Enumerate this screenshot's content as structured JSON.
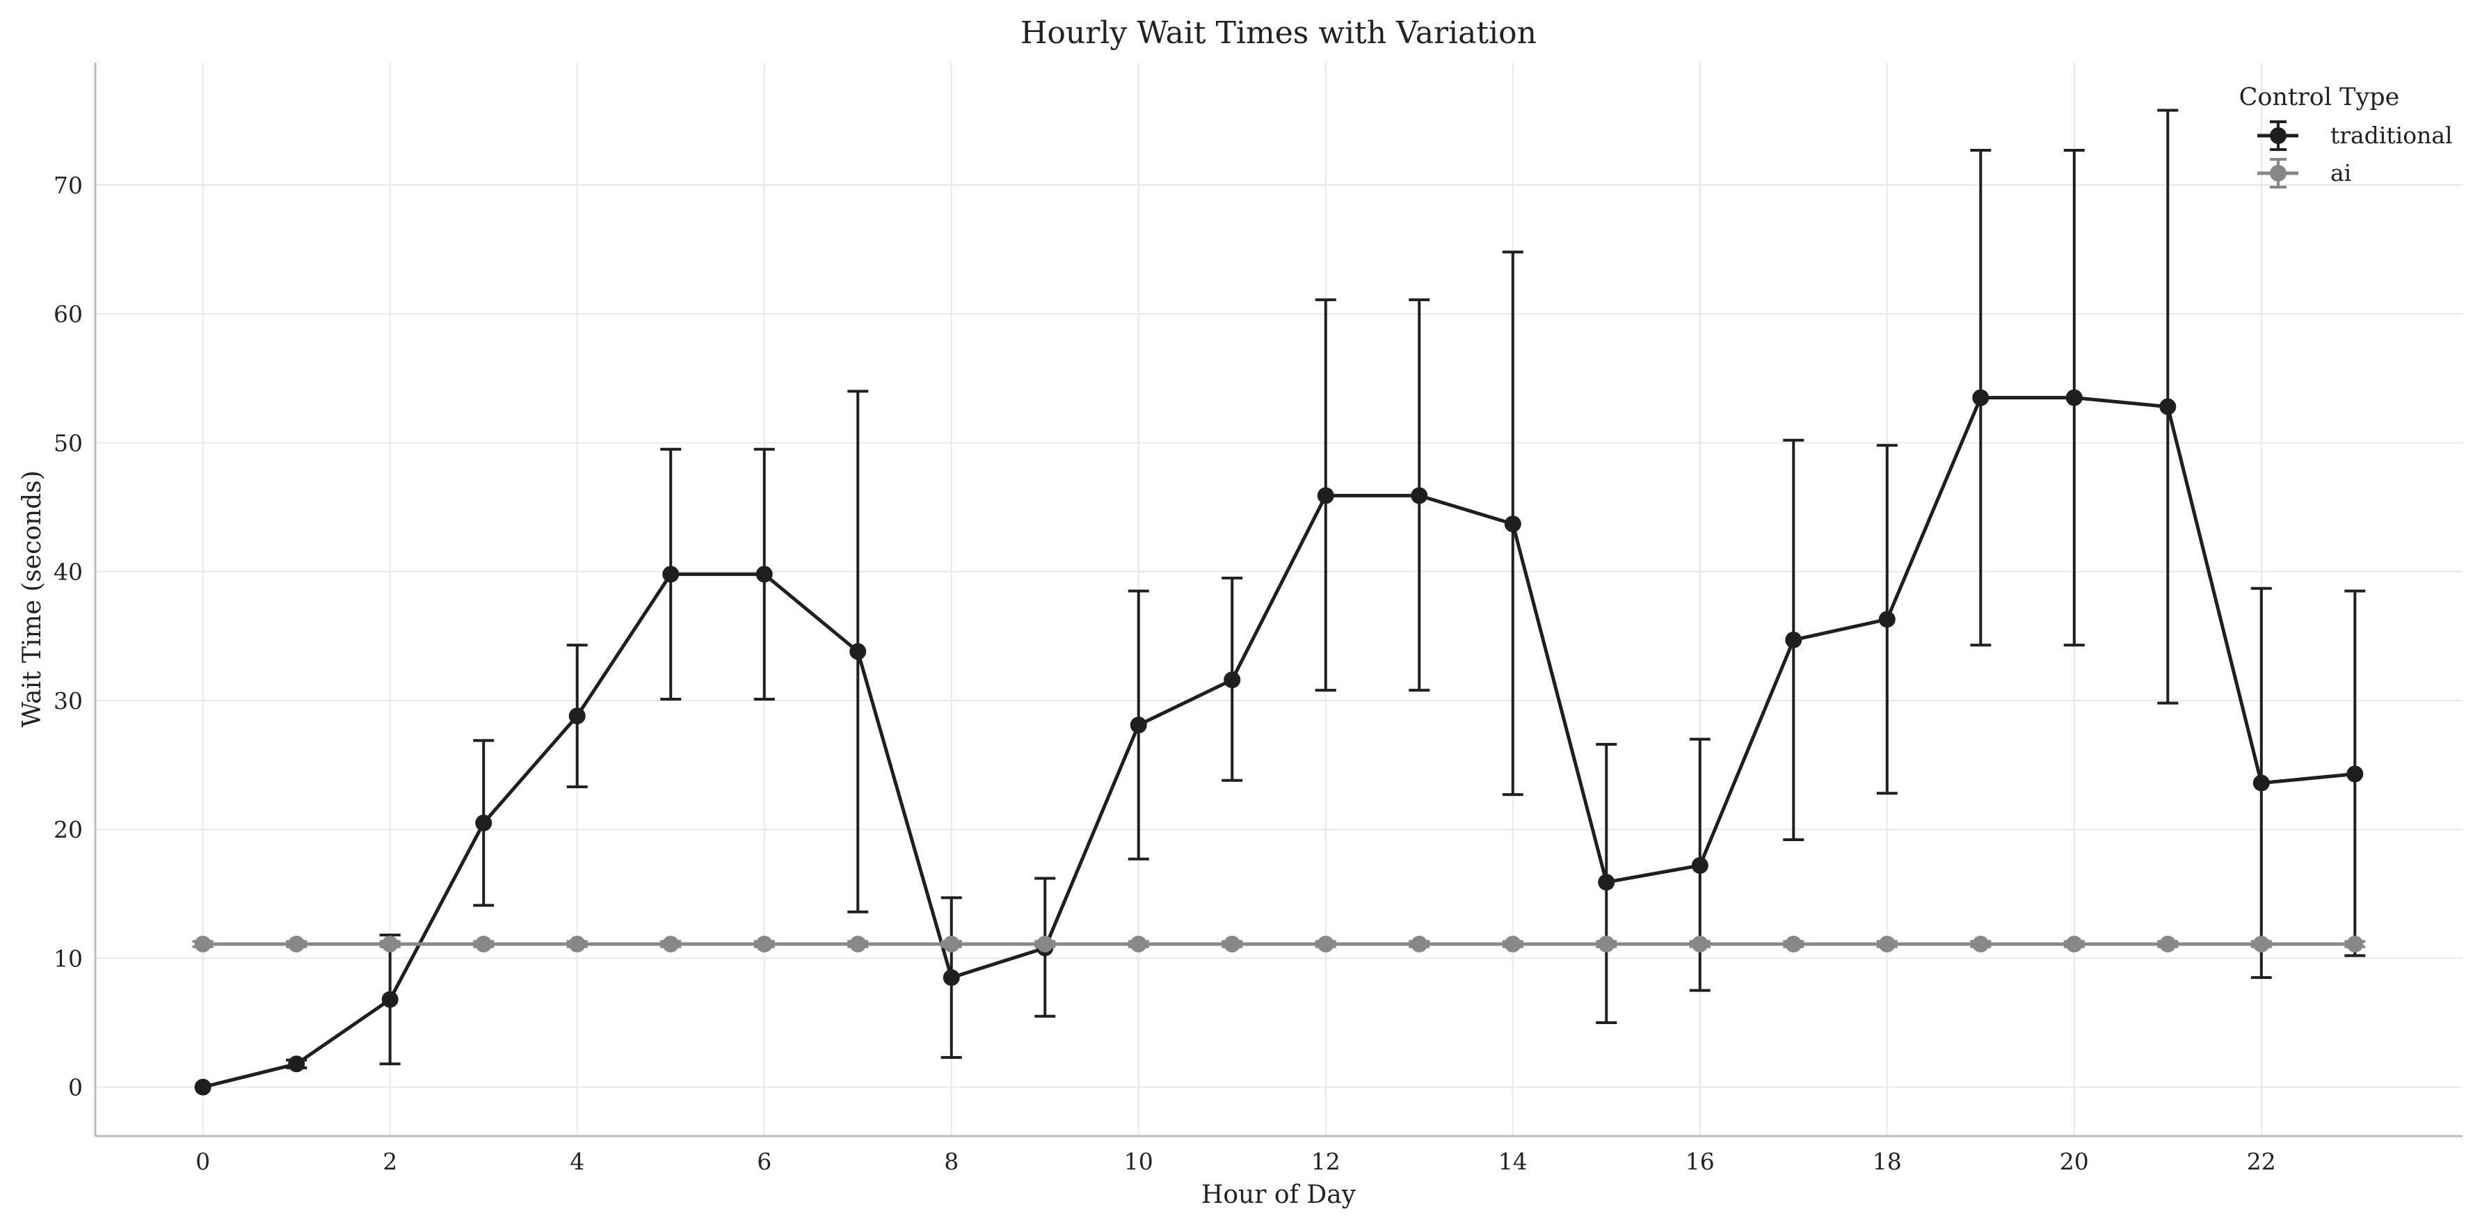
{
  "chart_data": {
    "type": "line",
    "title": "Hourly Wait Times with Variation",
    "xlabel": "Hour of Day",
    "ylabel": "Wait Time (seconds)",
    "xlim": [
      -1.15,
      24.15
    ],
    "ylim": [
      -3.8,
      79.5
    ],
    "xticks": [
      0,
      2,
      4,
      6,
      8,
      10,
      12,
      14,
      16,
      18,
      20,
      22
    ],
    "yticks": [
      0,
      10,
      20,
      30,
      40,
      50,
      60,
      70
    ],
    "grid": true,
    "error_bars": true,
    "legend": {
      "title": "Control Type",
      "placement": "top-right"
    },
    "x": [
      0,
      1,
      2,
      3,
      4,
      5,
      6,
      7,
      8,
      9,
      10,
      11,
      12,
      13,
      14,
      15,
      16,
      17,
      18,
      19,
      20,
      21,
      22,
      23
    ],
    "series": [
      {
        "name": "traditional",
        "color": "#1f1f1f",
        "values": [
          0.0,
          1.8,
          6.8,
          20.5,
          28.8,
          39.8,
          39.8,
          33.8,
          8.5,
          10.8,
          28.1,
          31.6,
          45.9,
          45.9,
          43.7,
          15.9,
          17.2,
          34.7,
          36.3,
          53.5,
          53.5,
          52.8,
          23.6,
          24.3
        ],
        "err_low": [
          0.0,
          1.5,
          1.8,
          14.1,
          23.3,
          30.1,
          30.1,
          13.6,
          2.3,
          5.5,
          17.7,
          23.8,
          30.8,
          30.8,
          22.7,
          5.0,
          7.5,
          19.2,
          22.8,
          34.3,
          34.3,
          29.8,
          8.5,
          10.2
        ],
        "err_high": [
          0.0,
          2.1,
          11.8,
          26.9,
          34.3,
          49.5,
          49.5,
          54.0,
          14.7,
          16.2,
          38.5,
          39.5,
          61.1,
          61.1,
          64.8,
          26.6,
          27.0,
          50.2,
          49.8,
          72.7,
          72.7,
          75.8,
          38.7,
          38.5
        ]
      },
      {
        "name": "ai",
        "color": "#888888",
        "values": [
          11.1,
          11.1,
          11.1,
          11.1,
          11.1,
          11.1,
          11.1,
          11.1,
          11.1,
          11.1,
          11.1,
          11.1,
          11.1,
          11.1,
          11.1,
          11.1,
          11.1,
          11.1,
          11.1,
          11.1,
          11.1,
          11.1,
          11.1,
          11.1
        ],
        "err_low": [
          10.9,
          10.9,
          10.9,
          10.9,
          10.9,
          10.9,
          10.9,
          10.9,
          10.9,
          10.9,
          10.9,
          10.9,
          10.9,
          10.9,
          10.9,
          10.9,
          10.9,
          10.9,
          10.9,
          10.9,
          10.9,
          10.9,
          10.9,
          10.9
        ],
        "err_high": [
          11.3,
          11.3,
          11.3,
          11.3,
          11.3,
          11.3,
          11.3,
          11.3,
          11.3,
          11.3,
          11.3,
          11.3,
          11.3,
          11.3,
          11.3,
          11.3,
          11.3,
          11.3,
          11.3,
          11.3,
          11.3,
          11.3,
          11.3,
          11.3
        ]
      }
    ]
  }
}
